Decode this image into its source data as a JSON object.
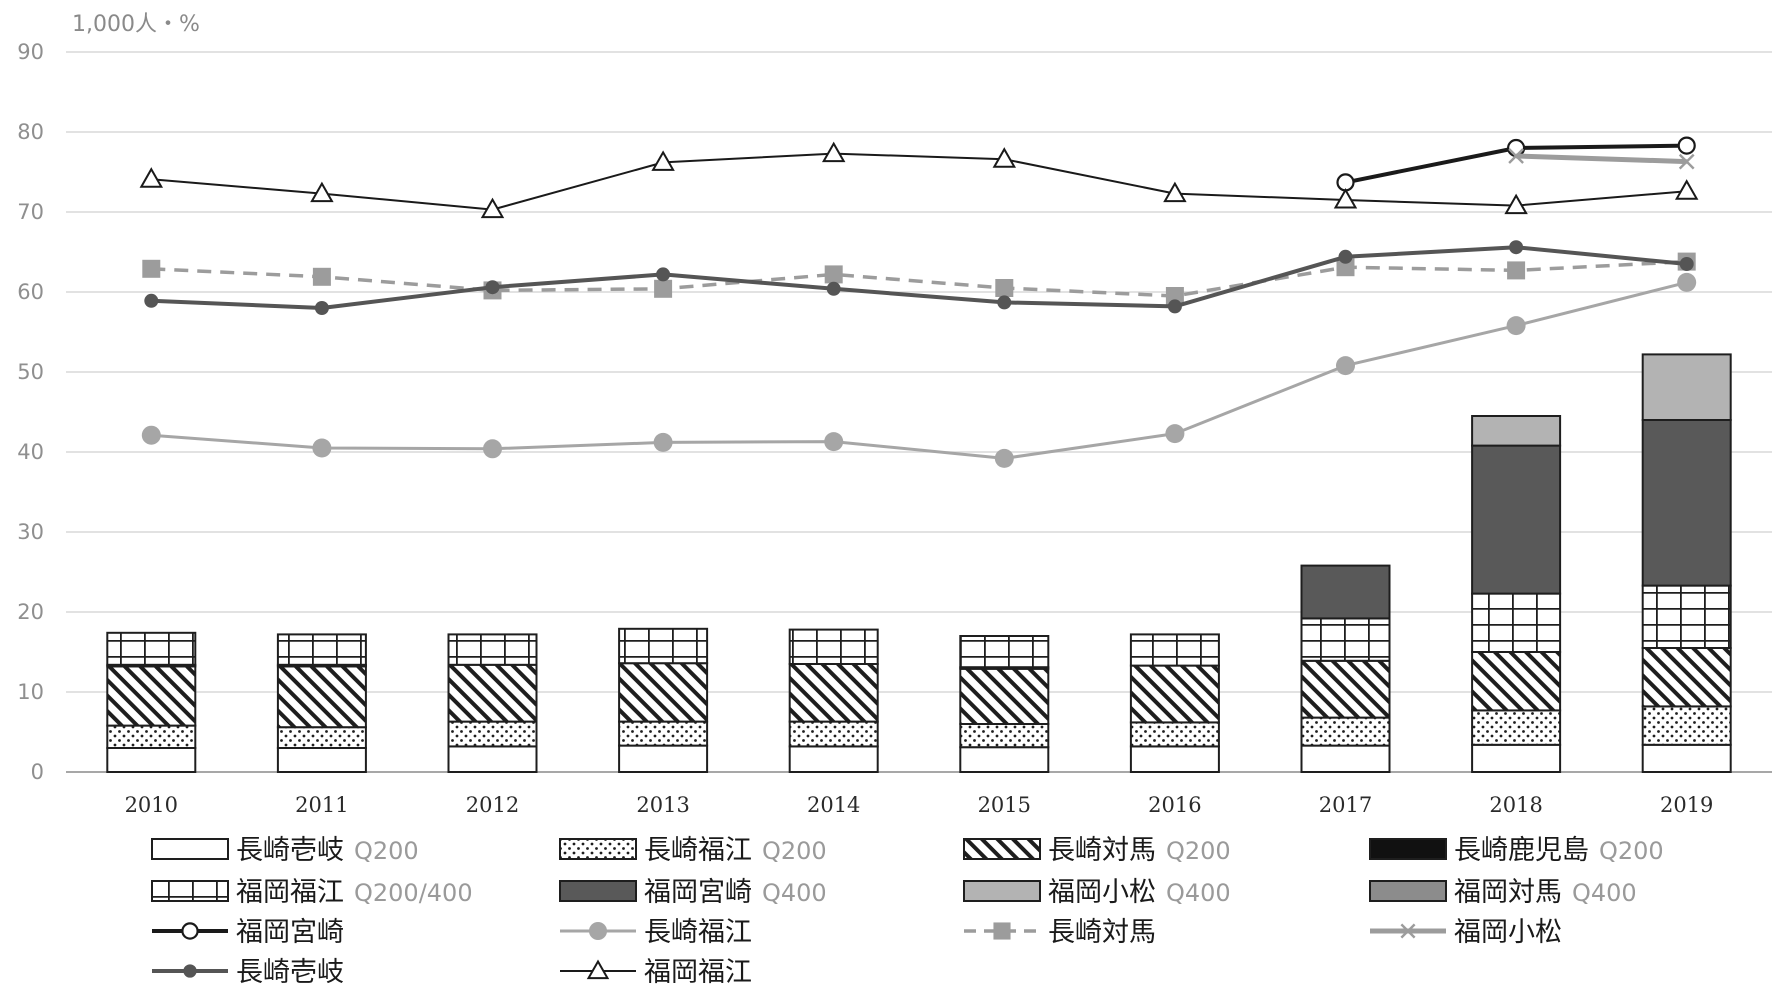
{
  "chart_data": {
    "type": "bar+line",
    "unit_label": "1,000人・%",
    "categories": [
      "2010",
      "2011",
      "2012",
      "2013",
      "2014",
      "2015",
      "2016",
      "2017",
      "2018",
      "2019"
    ],
    "ylim": [
      0,
      90
    ],
    "yticks": [
      0,
      10,
      20,
      30,
      40,
      50,
      60,
      70,
      80,
      90
    ],
    "grid": true,
    "legend_position": "bottom",
    "bar_series": [
      {
        "name": "長崎壱岐",
        "capacity": "Q200",
        "pattern": "white",
        "values": [
          3,
          3,
          3.2,
          3.3,
          3.2,
          3.1,
          3.2,
          3.3,
          3.4,
          3.4
        ]
      },
      {
        "name": "長崎福江",
        "capacity": "Q200",
        "pattern": "dots",
        "values": [
          2.8,
          2.6,
          3.1,
          3,
          3.1,
          2.9,
          3,
          3.5,
          4.3,
          4.8
        ]
      },
      {
        "name": "長崎対馬",
        "capacity": "Q200",
        "pattern": "diagonal",
        "values": [
          7.4,
          7.6,
          7.1,
          7.3,
          7.2,
          6.9,
          7.1,
          7.1,
          7.3,
          7.3
        ]
      },
      {
        "name": "長崎鹿児島",
        "capacity": "Q200",
        "pattern": "black",
        "values": [
          0.2,
          0.2,
          0,
          0,
          0,
          0.2,
          0,
          0,
          0,
          0
        ]
      },
      {
        "name": "福岡福江",
        "capacity": "Q200/400",
        "pattern": "grid",
        "values": [
          4,
          3.8,
          3.8,
          4.3,
          4.3,
          3.9,
          3.9,
          5.3,
          7.3,
          7.8
        ]
      },
      {
        "name": "福岡宮崎",
        "capacity": "Q400",
        "pattern": "dark-gray",
        "values": [
          0,
          0,
          0,
          0,
          0,
          0,
          0,
          6.6,
          18.5,
          20.7
        ]
      },
      {
        "name": "福岡小松",
        "capacity": "Q400",
        "pattern": "light-gray",
        "values": [
          0,
          0,
          0,
          0,
          0,
          0,
          0,
          0,
          3.7,
          8.2
        ]
      },
      {
        "name": "福岡対馬",
        "capacity": "Q400",
        "pattern": "mid-gray",
        "values": [
          0,
          0,
          0,
          0,
          0,
          0,
          0,
          0,
          0,
          0
        ]
      }
    ],
    "line_series": [
      {
        "name": "福岡宮崎",
        "style": "black-open-circle",
        "values": [
          null,
          null,
          null,
          null,
          null,
          null,
          null,
          73.7,
          78,
          78.3
        ]
      },
      {
        "name": "長崎福江",
        "style": "lightgray-filled-circle",
        "values": [
          42.1,
          40.5,
          40.4,
          41.2,
          41.3,
          39.2,
          42.3,
          50.8,
          55.8,
          61.2
        ]
      },
      {
        "name": "長崎対馬",
        "style": "gray-dashed-square",
        "values": [
          62.9,
          61.9,
          60.2,
          60.4,
          62.2,
          60.5,
          59.5,
          63.1,
          62.7,
          63.8
        ]
      },
      {
        "name": "福岡小松",
        "style": "gray-x",
        "values": [
          null,
          null,
          null,
          null,
          null,
          null,
          null,
          null,
          77,
          76.3
        ]
      },
      {
        "name": "長崎壱岐",
        "style": "darkgray-filled-circle",
        "values": [
          58.9,
          58,
          60.6,
          62.2,
          60.4,
          58.7,
          58.2,
          64.4,
          65.6,
          63.5
        ]
      },
      {
        "name": "福岡福江",
        "style": "black-open-triangle",
        "values": [
          74.1,
          72.3,
          70.3,
          76.2,
          77.3,
          76.6,
          72.3,
          71.5,
          70.8,
          72.6
        ]
      }
    ]
  },
  "colors": {
    "axis": "#8a8a8a",
    "grid": "#d9d9d9",
    "bar_outline": "#1e1e1e",
    "dark_gray": "#595959",
    "light_gray": "#b3b3b3",
    "mid_gray": "#8c8c8c",
    "line_black": "#1a1a1a",
    "line_lightgray": "#a6a6a6",
    "line_gray": "#9c9c9c",
    "line_darkgray": "#555555"
  }
}
